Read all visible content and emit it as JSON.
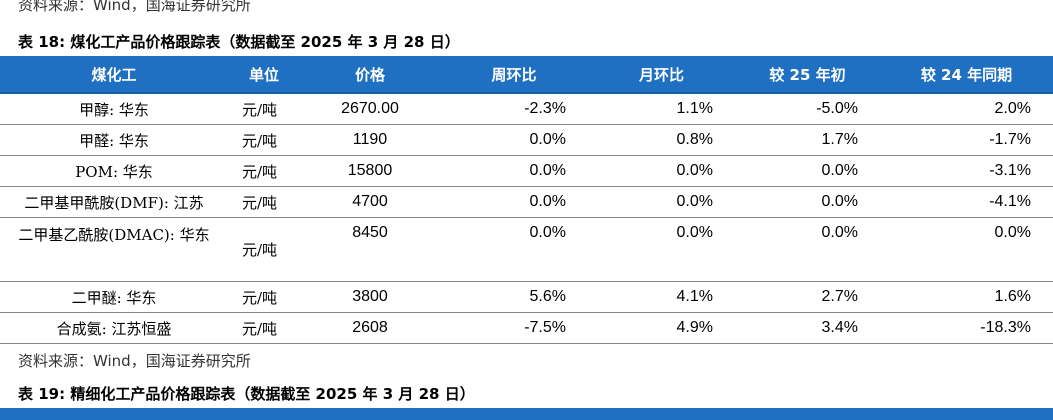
{
  "top_source": "资料来源：Wind，国海证券研究所",
  "table18": {
    "caption": "表 18: 煤化工产品价格跟踪表（数据截至 2025 年 3 月 28 日）",
    "header": [
      "煤化工",
      "单位",
      "价格",
      "周环比",
      "月环比",
      "较 25 年初",
      "较 24 年同期"
    ],
    "rows": [
      [
        "甲醇: 华东",
        "元/吨",
        "2670.00",
        "-2.3%",
        "1.1%",
        "-5.0%",
        "2.0%"
      ],
      [
        "甲醛: 华东",
        "元/吨",
        "1190",
        "0.0%",
        "0.8%",
        "1.7%",
        "-1.7%"
      ],
      [
        "POM: 华东",
        "元/吨",
        "15800",
        "0.0%",
        "0.0%",
        "0.0%",
        "-3.1%"
      ],
      [
        "二甲基甲酰胺(DMF): 江苏",
        "元/吨",
        "4700",
        "0.0%",
        "0.0%",
        "0.0%",
        "-4.1%"
      ],
      [
        "二甲基乙酰胺(DMAC): 华东",
        "元/吨",
        "8450",
        "0.0%",
        "0.0%",
        "0.0%",
        "0.0%"
      ],
      [
        "二甲醚: 华东",
        "元/吨",
        "3800",
        "5.6%",
        "4.1%",
        "2.7%",
        "1.6%"
      ],
      [
        "合成氨: 江苏恒盛",
        "元/吨",
        "2608",
        "-7.5%",
        "4.9%",
        "3.4%",
        "-18.3%"
      ]
    ],
    "source": "资料来源：Wind，国海证券研究所"
  },
  "table19": {
    "caption": "表 19: 精细化工产品价格跟踪表（数据截至 2025 年 3 月 28 日）"
  }
}
